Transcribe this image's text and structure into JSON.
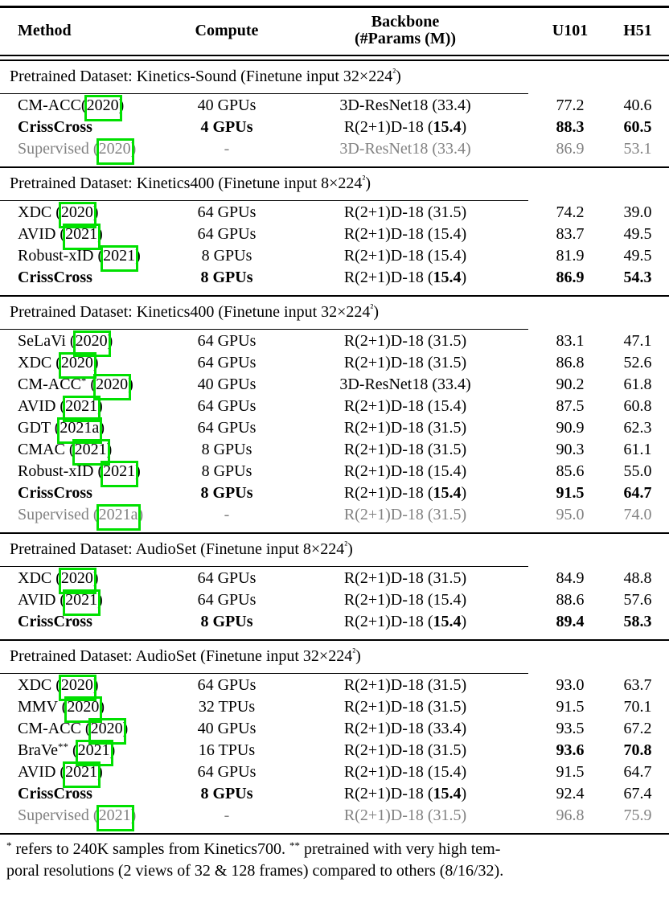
{
  "colors": {
    "citation_box_green": "#00e000",
    "muted_text_gray": "#828282",
    "text_black": "#000000",
    "page_background": "#ffffff"
  },
  "table": {
    "columns": {
      "method": "Method",
      "compute": "Compute",
      "backbone_line1": "Backbone",
      "backbone_line2": "(#Params (M))",
      "u101": "U101",
      "h51": "H51"
    },
    "sections": [
      {
        "title": "Pretrained Dataset: Kinetics-Sound (Finetune input 32×224²)",
        "rows": [
          {
            "method": "CM-ACC",
            "cite": "2020",
            "tight": true,
            "compute": "40 GPUs",
            "backbone": {
              "pre": "3D-ResNet18 (",
              "params": "33.4",
              "post": ")"
            },
            "u101": "77.2",
            "h51": "40.6"
          },
          {
            "method": "CrissCross",
            "ours": true,
            "metrics_bold": true,
            "compute": "4 GPUs",
            "backbone": {
              "pre": "R(2+1)D-18 (",
              "params": "15.4",
              "post": ")"
            },
            "u101": "88.3",
            "h51": "60.5"
          },
          {
            "method": "Supervised",
            "cite": "2020",
            "muted": true,
            "compute": "-",
            "backbone": {
              "pre": "3D-ResNet18 (",
              "params": "33.4",
              "post": ")"
            },
            "u101": "86.9",
            "h51": "53.1"
          }
        ]
      },
      {
        "title": "Pretrained Dataset: Kinetics400 (Finetune input 8×224²)",
        "rows": [
          {
            "method": "XDC",
            "cite": "2020",
            "compute": "64 GPUs",
            "backbone": {
              "pre": "R(2+1)D-18 (",
              "params": "31.5",
              "post": ")"
            },
            "u101": "74.2",
            "h51": "39.0"
          },
          {
            "method": "AVID",
            "cite": "2021",
            "compute": "64 GPUs",
            "backbone": {
              "pre": "R(2+1)D-18 (",
              "params": "15.4",
              "post": ")"
            },
            "u101": "83.7",
            "h51": "49.5"
          },
          {
            "method": "Robust-xID",
            "cite": "2021",
            "compute": "8 GPUs",
            "backbone": {
              "pre": "R(2+1)D-18 (",
              "params": "15.4",
              "post": ")"
            },
            "u101": "81.9",
            "h51": "49.5"
          },
          {
            "method": "CrissCross",
            "ours": true,
            "metrics_bold": true,
            "compute": "8 GPUs",
            "backbone": {
              "pre": "R(2+1)D-18 (",
              "params": "15.4",
              "post": ")"
            },
            "u101": "86.9",
            "h51": "54.3"
          }
        ]
      },
      {
        "title": "Pretrained Dataset: Kinetics400 (Finetune input 32×224²)",
        "rows": [
          {
            "method": "SeLaVi",
            "cite": "2020",
            "compute": "64 GPUs",
            "backbone": {
              "pre": "R(2+1)D-18 (",
              "params": "31.5",
              "post": ")"
            },
            "u101": "83.1",
            "h51": "47.1"
          },
          {
            "method": "XDC",
            "cite": "2020",
            "compute": "64 GPUs",
            "backbone": {
              "pre": "R(2+1)D-18 (",
              "params": "31.5",
              "post": ")"
            },
            "u101": "86.8",
            "h51": "52.6"
          },
          {
            "method": "CM-ACC",
            "sup": "*",
            "cite": "2020",
            "compute": "40 GPUs",
            "backbone": {
              "pre": "3D-ResNet18 (",
              "params": "33.4",
              "post": ")"
            },
            "u101": "90.2",
            "h51": "61.8"
          },
          {
            "method": "AVID",
            "cite": "2021",
            "compute": "64 GPUs",
            "backbone": {
              "pre": "R(2+1)D-18 (",
              "params": "15.4",
              "post": ")"
            },
            "u101": "87.5",
            "h51": "60.8"
          },
          {
            "method": "GDT",
            "cite": "2021a",
            "compute": "64 GPUs",
            "backbone": {
              "pre": "R(2+1)D-18 (",
              "params": "31.5",
              "post": ")"
            },
            "u101": "90.9",
            "h51": "62.3"
          },
          {
            "method": "CMAC",
            "cite": "2021",
            "compute": "8 GPUs",
            "backbone": {
              "pre": "R(2+1)D-18 (",
              "params": "31.5",
              "post": ")"
            },
            "u101": "90.3",
            "h51": "61.1"
          },
          {
            "method": "Robust-xID",
            "cite": "2021",
            "compute": "8 GPUs",
            "backbone": {
              "pre": "R(2+1)D-18 (",
              "params": "15.4",
              "post": ")"
            },
            "u101": "85.6",
            "h51": "55.0"
          },
          {
            "method": "CrissCross",
            "ours": true,
            "metrics_bold": true,
            "compute": "8 GPUs",
            "backbone": {
              "pre": "R(2+1)D-18 (",
              "params": "15.4",
              "post": ")"
            },
            "u101": "91.5",
            "h51": "64.7"
          },
          {
            "method": "Supervised",
            "cite": "2021a",
            "muted": true,
            "compute": "-",
            "backbone": {
              "pre": "R(2+1)D-18 (",
              "params": "31.5",
              "post": ")"
            },
            "u101": "95.0",
            "h51": "74.0"
          }
        ]
      },
      {
        "title": "Pretrained Dataset: AudioSet (Finetune input 8×224²)",
        "rows": [
          {
            "method": "XDC",
            "cite": "2020",
            "compute": "64 GPUs",
            "backbone": {
              "pre": "R(2+1)D-18 (",
              "params": "31.5",
              "post": ")"
            },
            "u101": "84.9",
            "h51": "48.8"
          },
          {
            "method": "AVID",
            "cite": "2021",
            "compute": "64 GPUs",
            "backbone": {
              "pre": "R(2+1)D-18 (",
              "params": "15.4",
              "post": ")"
            },
            "u101": "88.6",
            "h51": "57.6"
          },
          {
            "method": "CrissCross",
            "ours": true,
            "metrics_bold": true,
            "compute": "8 GPUs",
            "backbone": {
              "pre": "R(2+1)D-18 (",
              "params": "15.4",
              "post": ")"
            },
            "u101": "89.4",
            "h51": "58.3"
          }
        ]
      },
      {
        "title": "Pretrained Dataset: AudioSet (Finetune input 32×224²)",
        "rows": [
          {
            "method": "XDC",
            "cite": "2020",
            "compute": "64 GPUs",
            "backbone": {
              "pre": "R(2+1)D-18 (",
              "params": "31.5",
              "post": ")"
            },
            "u101": "93.0",
            "h51": "63.7"
          },
          {
            "method": "MMV",
            "cite": "2020",
            "compute": "32 TPUs",
            "backbone": {
              "pre": "R(2+1)D-18 (",
              "params": "31.5",
              "post": ")"
            },
            "u101": "91.5",
            "h51": "70.1"
          },
          {
            "method": "CM-ACC",
            "cite": "2020",
            "compute": "40 GPUs",
            "backbone": {
              "pre": "R(2+1)D-18 (",
              "params": "33.4",
              "post": ")"
            },
            "u101": "93.5",
            "h51": "67.2"
          },
          {
            "method": "BraVe",
            "sup": "**",
            "cite": "2021",
            "metrics_bold": true,
            "compute": "16 TPUs",
            "backbone": {
              "pre": "R(2+1)D-18 (",
              "params": "31.5",
              "post": ")"
            },
            "u101": "93.6",
            "h51": "70.8"
          },
          {
            "method": "AVID",
            "cite": "2021",
            "compute": "64 GPUs",
            "backbone": {
              "pre": "R(2+1)D-18 (",
              "params": "15.4",
              "post": ")"
            },
            "u101": "91.5",
            "h51": "64.7"
          },
          {
            "method": "CrissCross",
            "ours": true,
            "compute": "8 GPUs",
            "backbone": {
              "pre": "R(2+1)D-18 (",
              "params": "15.4",
              "post": ")"
            },
            "u101": "92.4",
            "h51": "67.4"
          },
          {
            "method": "Supervised",
            "cite": "2021",
            "muted": true,
            "compute": "-",
            "backbone": {
              "pre": "R(2+1)D-18 (",
              "params": "31.5",
              "post": ")"
            },
            "u101": "96.8",
            "h51": "75.9"
          }
        ]
      }
    ]
  },
  "footnote": {
    "sup1": "*",
    "seg1": " refers to 240K samples from Kinetics700. ",
    "sup2": "**",
    "seg2": " pretrained with very high tem-",
    "line2": "poral resolutions (2 views of 32 & 128 frames) compared to others (8/16/32)."
  }
}
